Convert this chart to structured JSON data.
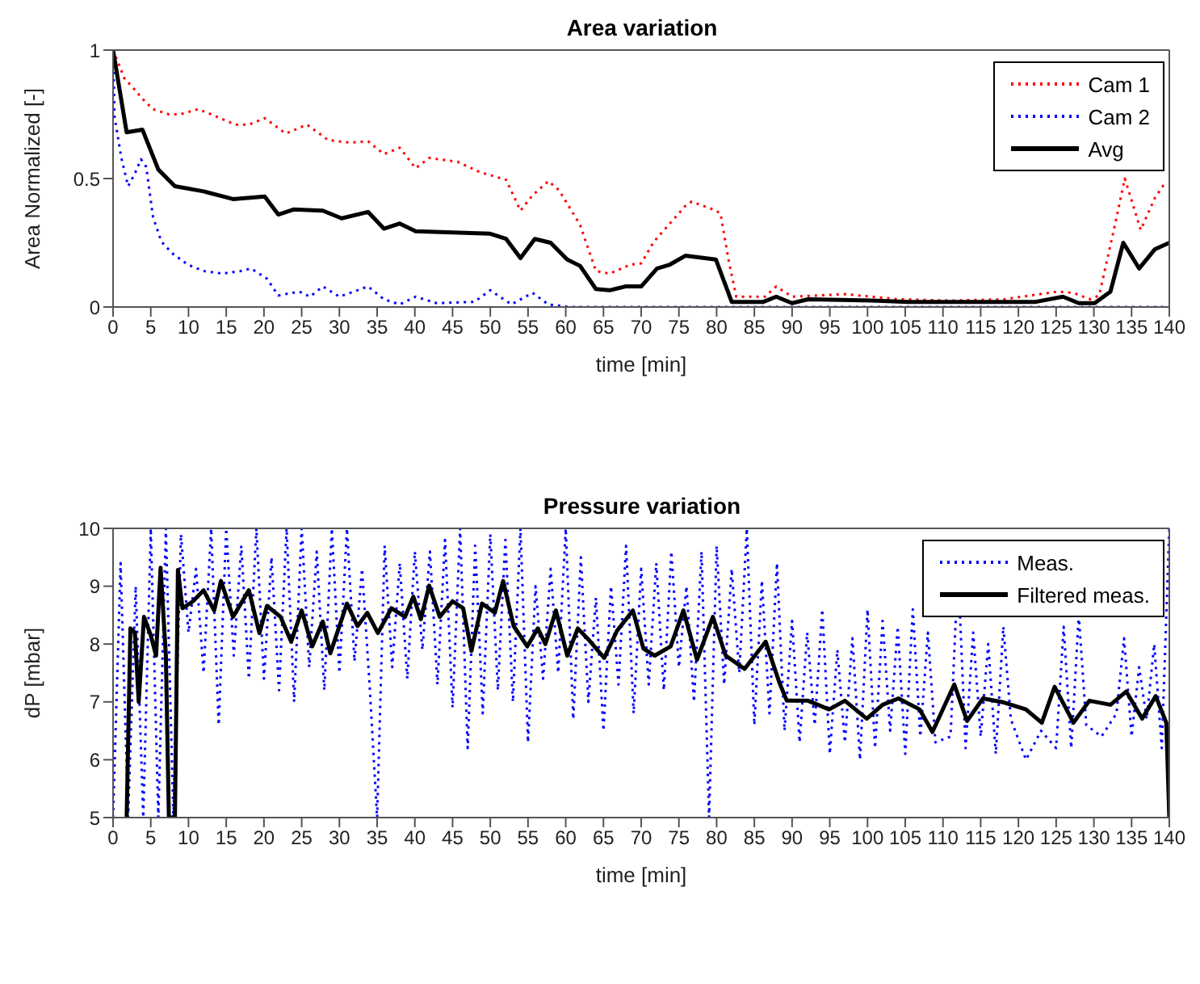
{
  "chart_data": [
    {
      "type": "line",
      "title": "Area variation",
      "xlabel": "time [min]",
      "ylabel": "Area Normalized [-]",
      "xlim": [
        0,
        140
      ],
      "xticks": [
        0,
        5,
        10,
        15,
        20,
        25,
        30,
        35,
        40,
        45,
        50,
        55,
        60,
        65,
        70,
        75,
        80,
        85,
        90,
        95,
        100,
        105,
        110,
        115,
        120,
        125,
        130,
        135,
        140
      ],
      "ylim": [
        0,
        1
      ],
      "yticks": [
        0,
        0.5,
        1
      ],
      "legend": "top right",
      "marker": "none",
      "series": [
        {
          "name": "Cam 1",
          "color": "#ff0000",
          "line_style": "dotted",
          "x": [
            0,
            1.5,
            2.9,
            3.9,
            5.3,
            7.4,
            8.9,
            11.3,
            13.4,
            16.2,
            18,
            20.1,
            22.9,
            25.7,
            28.5,
            31.3,
            33.8,
            35.9,
            38,
            40.1,
            41.9,
            45.7,
            48.6,
            52.1,
            54,
            55.6,
            57.7,
            59.1,
            61.9,
            64,
            65.8,
            68.6,
            70,
            71.7,
            73.8,
            75.9,
            76.7,
            79.5,
            80.5,
            81.6,
            82.6,
            86.4,
            87.9,
            90,
            97,
            104.2,
            111.1,
            118.1,
            125.2,
            127.3,
            129.5,
            130.7,
            132.8,
            134.1,
            134.9,
            136.2,
            138.1,
            139.6
          ],
          "values": [
            1,
            0.89,
            0.845,
            0.81,
            0.77,
            0.75,
            0.75,
            0.77,
            0.745,
            0.71,
            0.71,
            0.735,
            0.675,
            0.71,
            0.65,
            0.64,
            0.645,
            0.595,
            0.62,
            0.54,
            0.58,
            0.565,
            0.525,
            0.495,
            0.375,
            0.435,
            0.49,
            0.455,
            0.32,
            0.14,
            0.13,
            0.165,
            0.17,
            0.255,
            0.325,
            0.395,
            0.41,
            0.38,
            0.365,
            0.18,
            0.04,
            0.04,
            0.08,
            0.04,
            0.05,
            0.03,
            0.025,
            0.03,
            0.06,
            0.055,
            0.03,
            0.045,
            0.32,
            0.5,
            0.425,
            0.3,
            0.425,
            0.49
          ]
        },
        {
          "name": "Cam 2",
          "color": "#0000ff",
          "line_style": "dotted",
          "x": [
            0,
            0.2,
            1.1,
            2,
            2.9,
            3.7,
            4.4,
            5.3,
            6.4,
            7.8,
            9.9,
            12,
            14.5,
            16.9,
            18.3,
            20.4,
            21.9,
            24.7,
            26.1,
            27.8,
            30,
            33.8,
            35.9,
            38,
            40.1,
            42.9,
            47.9,
            50,
            52.8,
            55.6,
            57.7,
            60.5,
            80,
            100,
            120,
            140
          ],
          "values": [
            1,
            0.74,
            0.58,
            0.47,
            0.52,
            0.575,
            0.545,
            0.35,
            0.255,
            0.21,
            0.165,
            0.14,
            0.13,
            0.14,
            0.15,
            0.11,
            0.045,
            0.06,
            0.04,
            0.08,
            0.04,
            0.08,
            0.03,
            0.01,
            0.04,
            0.015,
            0.02,
            0.065,
            0.01,
            0.055,
            0.01,
            0,
            0,
            0,
            0,
            0
          ]
        },
        {
          "name": "Avg",
          "color": "#000000",
          "line_style": "solid",
          "x": [
            0,
            1.8,
            3.9,
            6,
            8.2,
            12,
            15.9,
            20.1,
            21.9,
            24,
            27.8,
            30.3,
            33.8,
            35.9,
            38,
            40.1,
            50,
            52.1,
            54,
            55.9,
            58,
            60.2,
            61.9,
            64,
            65.8,
            67.9,
            70,
            72.1,
            73.8,
            75.9,
            79.9,
            82,
            86.2,
            87.9,
            90,
            92.1,
            100.6,
            105.4,
            112.6,
            122.3,
            125.9,
            128,
            130.1,
            132.2,
            133.9,
            136,
            138.1,
            140
          ],
          "values": [
            1,
            0.68,
            0.69,
            0.535,
            0.47,
            0.45,
            0.42,
            0.43,
            0.36,
            0.38,
            0.375,
            0.345,
            0.37,
            0.305,
            0.325,
            0.295,
            0.285,
            0.265,
            0.19,
            0.265,
            0.25,
            0.185,
            0.16,
            0.07,
            0.065,
            0.08,
            0.08,
            0.15,
            0.165,
            0.2,
            0.185,
            0.02,
            0.02,
            0.04,
            0.015,
            0.03,
            0.025,
            0.02,
            0.02,
            0.02,
            0.04,
            0.015,
            0.015,
            0.06,
            0.25,
            0.15,
            0.225,
            0.25
          ]
        }
      ]
    },
    {
      "type": "line",
      "title": "Pressure variation",
      "xlabel": "time [min]",
      "ylabel": "dP [mbar]",
      "xlim": [
        0,
        140
      ],
      "xticks": [
        0,
        5,
        10,
        15,
        20,
        25,
        30,
        35,
        40,
        45,
        50,
        55,
        60,
        65,
        70,
        75,
        80,
        85,
        90,
        95,
        100,
        105,
        110,
        115,
        120,
        125,
        130,
        135,
        140
      ],
      "ylim": [
        5,
        10
      ],
      "yticks": [
        5,
        6,
        7,
        8,
        9,
        10
      ],
      "legend": "top right",
      "marker": "none",
      "series": [
        {
          "name": "Meas.",
          "color": "#0000ff",
          "line_style": "dotted",
          "x": [
            0,
            1,
            2,
            3,
            4,
            5,
            6,
            7,
            8,
            9,
            10,
            11,
            12,
            13,
            14,
            15,
            16,
            17,
            18,
            19,
            20,
            21,
            22,
            23,
            24,
            25,
            26,
            27,
            28,
            29,
            30,
            31,
            32,
            33,
            34,
            35,
            36,
            37,
            38,
            39,
            40,
            41,
            42,
            43,
            44,
            45,
            46,
            47,
            48,
            49,
            50,
            51,
            52,
            53,
            54,
            55,
            56,
            57,
            58,
            59,
            60,
            61,
            62,
            63,
            64,
            65,
            66,
            67,
            68,
            69,
            70,
            71,
            72,
            73,
            74,
            75,
            76,
            77,
            78,
            79,
            80,
            81,
            82,
            83,
            84,
            85,
            86,
            87,
            88,
            89,
            90,
            91,
            92,
            93,
            94,
            95,
            96,
            97,
            98,
            99,
            100,
            101,
            102,
            103,
            104,
            105,
            106,
            107,
            108,
            109,
            111,
            112,
            113,
            114,
            115,
            116,
            117,
            118,
            119,
            121,
            123,
            125,
            126,
            127,
            128,
            129,
            131,
            133,
            134,
            135,
            136,
            137,
            138,
            139,
            140
          ],
          "values": [
            5,
            9.4,
            5,
            9,
            5,
            10,
            5,
            10,
            5,
            9.9,
            8.2,
            9.3,
            7.5,
            10,
            6.6,
            10,
            7.8,
            9.7,
            7.4,
            10,
            7.4,
            9.5,
            7.2,
            10,
            7,
            10,
            7.6,
            9.6,
            7.2,
            10,
            7.5,
            10,
            7.7,
            9.3,
            7.3,
            5,
            9.7,
            7.6,
            9.4,
            7.4,
            9.6,
            7.9,
            9.6,
            7.3,
            9.8,
            6.9,
            10,
            6.2,
            9.7,
            6.8,
            9.9,
            7.2,
            9.8,
            7,
            10,
            6.3,
            9,
            7.4,
            9.3,
            7.5,
            10,
            6.7,
            9.5,
            7,
            8.8,
            6.5,
            9,
            7.3,
            9.7,
            6.8,
            9.3,
            7.3,
            9.4,
            7.2,
            9.6,
            7.6,
            9,
            7,
            9.6,
            5,
            9.7,
            7.3,
            9.3,
            7.5,
            10,
            6.6,
            9.1,
            6.8,
            9.4,
            6.5,
            8.4,
            6.3,
            8.2,
            6.6,
            8.6,
            6.1,
            7.9,
            6.3,
            8.1,
            6,
            8.6,
            6.2,
            8.4,
            6.5,
            8.3,
            6.1,
            8.6,
            6.4,
            8.2,
            6.3,
            6.4,
            9.3,
            6.2,
            8.2,
            6.4,
            8,
            6.1,
            8.3,
            6.7,
            6,
            6.5,
            6.2,
            8.3,
            6.2,
            8.5,
            6.6,
            6.4,
            6.8,
            8.1,
            6.4,
            7.6,
            6.7,
            8,
            6.2,
            10
          ]
        },
        {
          "name": "Filtered meas.",
          "color": "#000000",
          "line_style": "solid",
          "x": [
            1.8,
            2.3,
            2.9,
            3.4,
            4.1,
            5,
            5.7,
            6.3,
            7,
            7.4,
            8.2,
            8.6,
            9.2,
            10.6,
            12,
            13.4,
            14.3,
            15.9,
            18,
            19.4,
            20.4,
            22.2,
            23.6,
            25,
            26.4,
            27.8,
            28.8,
            31,
            32.4,
            33.7,
            35.1,
            36.9,
            38.7,
            39.8,
            40.8,
            41.9,
            43.3,
            45,
            46.4,
            47.5,
            48.9,
            50.6,
            51.7,
            53.1,
            54.9,
            56.3,
            57.3,
            58.7,
            60.2,
            61.6,
            63,
            65.1,
            66.8,
            68.9,
            70.3,
            71.8,
            73.9,
            75.6,
            77.4,
            79.5,
            81.2,
            83.7,
            86.5,
            88.3,
            89.3,
            92.1,
            94.9,
            97,
            99.9,
            102,
            104.1,
            106.9,
            108.6,
            111.5,
            113.2,
            115.3,
            118.1,
            121,
            123.1,
            124.8,
            127.3,
            129.4,
            132.2,
            134.3,
            136.4,
            138.2,
            139.6,
            140
          ],
          "values": [
            5,
            8.27,
            8.2,
            7,
            8.47,
            8.15,
            7.8,
            9.32,
            7.8,
            5,
            5,
            9.28,
            8.62,
            8.74,
            8.93,
            8.58,
            9.09,
            8.47,
            8.93,
            8.19,
            8.66,
            8.47,
            8.04,
            8.58,
            7.96,
            8.39,
            7.84,
            8.7,
            8.31,
            8.54,
            8.19,
            8.62,
            8.47,
            8.82,
            8.43,
            9.01,
            8.47,
            8.74,
            8.62,
            7.88,
            8.7,
            8.54,
            9.09,
            8.31,
            7.96,
            8.27,
            8,
            8.58,
            7.8,
            8.27,
            8.08,
            7.76,
            8.23,
            8.58,
            7.92,
            7.8,
            7.96,
            8.58,
            7.73,
            8.47,
            7.8,
            7.57,
            8.04,
            7.34,
            7.02,
            7.02,
            6.87,
            7.02,
            6.71,
            6.95,
            7.06,
            6.87,
            6.48,
            7.3,
            6.67,
            7.06,
            6.99,
            6.87,
            6.64,
            7.26,
            6.64,
            7.02,
            6.95,
            7.18,
            6.71,
            7.1,
            6.64,
            5
          ]
        }
      ]
    }
  ]
}
